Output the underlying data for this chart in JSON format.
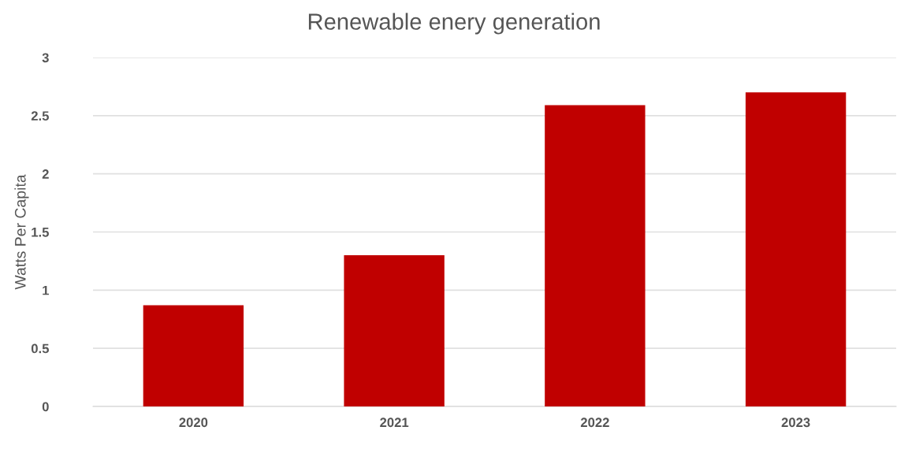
{
  "chart_data": {
    "type": "bar",
    "title": "Renewable enery generation",
    "ylabel": "Watts Per Capita",
    "categories": [
      "2020",
      "2021",
      "2022",
      "2023"
    ],
    "values": [
      0.87,
      1.3,
      2.59,
      2.7
    ],
    "color": "#c00000",
    "ylim": [
      0,
      3
    ],
    "yticks": [
      0,
      0.5,
      1,
      1.5,
      2,
      2.5,
      3
    ],
    "grid": "y",
    "legend": false
  }
}
